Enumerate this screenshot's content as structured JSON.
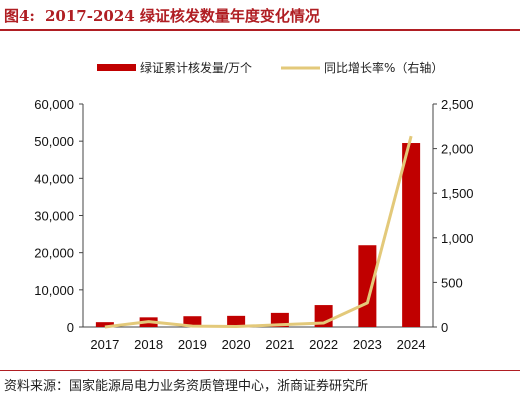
{
  "figure": {
    "number": "图4:",
    "title": "2017-2024 绿证核发数量年度变化情况"
  },
  "source": "资料来源：国家能源局电力业务资质管理中心，浙商证券研究所",
  "colors": {
    "bar": "#c00000",
    "line": "#e3c97a",
    "title": "#b01e23"
  },
  "chart_data": {
    "type": "bar",
    "categories": [
      "2017",
      "2018",
      "2019",
      "2020",
      "2021",
      "2022",
      "2023",
      "2024"
    ],
    "series": [
      {
        "name": "绿证累计核发量/万个",
        "type": "bar",
        "axis": "left",
        "values": [
          1300,
          2600,
          2900,
          3000,
          3800,
          5900,
          22000,
          49500
        ]
      },
      {
        "name": "同比增长率%（右轴）",
        "type": "line",
        "axis": "right",
        "values": [
          0,
          60,
          10,
          5,
          25,
          45,
          270,
          2140
        ]
      }
    ],
    "y_left": {
      "lim": [
        0,
        60000
      ],
      "ticks": [
        "0",
        "10,000",
        "20,000",
        "30,000",
        "40,000",
        "50,000",
        "60,000"
      ]
    },
    "y_right": {
      "lim": [
        0,
        2500
      ],
      "ticks": [
        "0",
        "500",
        "1,000",
        "1,500",
        "2,000",
        "2,500"
      ]
    },
    "legend_position": "top",
    "grid": false
  }
}
